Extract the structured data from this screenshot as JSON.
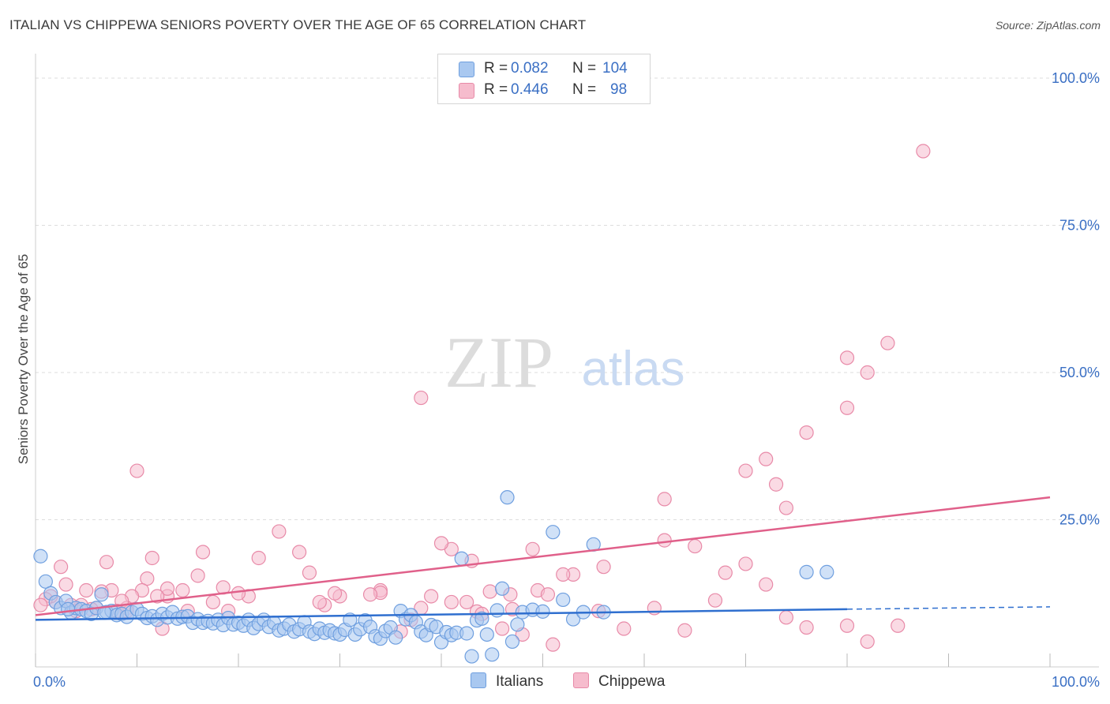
{
  "header": {
    "title": "ITALIAN VS CHIPPEWA SENIORS POVERTY OVER THE AGE OF 65 CORRELATION CHART",
    "source": "Source: ZipAtlas.com"
  },
  "legend": {
    "rows": [
      {
        "r_label": "R =",
        "r_value": "0.082",
        "n_label": "N =",
        "n_value": "104"
      },
      {
        "r_label": "R =",
        "r_value": "0.446",
        "n_label": "N =",
        "n_value": "98"
      }
    ],
    "bottom": [
      "Italians",
      "Chippewa"
    ]
  },
  "watermark": {
    "zip": "ZIP",
    "atlas": "atlas"
  },
  "colors": {
    "italians_fill": "#a9c8f0",
    "italians_stroke": "#6f9fdf",
    "italians_line": "#2f6fcf",
    "chippewa_fill": "#f6bccd",
    "chippewa_stroke": "#e88aa8",
    "chippewa_line": "#e0608a",
    "axis_label": "#3a6fc4",
    "grid": "#dddddd"
  },
  "chart_data": {
    "type": "scatter",
    "title": "ITALIAN VS CHIPPEWA SENIORS POVERTY OVER THE AGE OF 65 CORRELATION CHART",
    "xlabel": "",
    "ylabel": "Seniors Poverty Over the Age of 65",
    "xlim": [
      0,
      100
    ],
    "ylim": [
      0,
      100
    ],
    "x_tick_labels": [
      {
        "value": 0,
        "label": "0.0%"
      },
      {
        "value": 100,
        "label": "100.0%"
      }
    ],
    "y_tick_labels": [
      {
        "value": 25,
        "label": "25.0%"
      },
      {
        "value": 50,
        "label": "50.0%"
      },
      {
        "value": 75,
        "label": "75.0%"
      },
      {
        "value": 100,
        "label": "100.0%"
      }
    ],
    "grid_y": [
      25,
      50,
      75,
      100
    ],
    "series": [
      {
        "name": "Italians",
        "R": 0.082,
        "N": 104,
        "trend": {
          "x0": 0,
          "y0": 8.0,
          "x1": 80,
          "y1": 9.8,
          "dash_to_x": 100,
          "dash_to_y": 10.2
        },
        "points": [
          [
            0.5,
            18.8
          ],
          [
            1,
            14.5
          ],
          [
            1.5,
            12.5
          ],
          [
            2,
            11
          ],
          [
            2.5,
            10
          ],
          [
            3,
            11.2
          ],
          [
            3.5,
            9.2
          ],
          [
            4,
            10
          ],
          [
            4.5,
            9.8
          ],
          [
            5,
            9.5
          ],
          [
            5.5,
            9
          ],
          [
            6,
            10
          ],
          [
            6.5,
            12.3
          ],
          [
            7,
            9.3
          ],
          [
            7.5,
            9.5
          ],
          [
            8,
            8.8
          ],
          [
            8.5,
            9.0
          ],
          [
            9,
            8.5
          ],
          [
            9.5,
            9.3
          ],
          [
            10,
            9.8
          ],
          [
            10.5,
            9.0
          ],
          [
            11,
            8.3
          ],
          [
            11.5,
            8.6
          ],
          [
            12,
            8.0
          ],
          [
            12.5,
            9.0
          ],
          [
            13,
            8.4
          ],
          [
            13.5,
            9.3
          ],
          [
            14,
            8.2
          ],
          [
            14.5,
            8.5
          ],
          [
            15,
            8.6
          ],
          [
            15.5,
            7.5
          ],
          [
            16,
            8.1
          ],
          [
            16.5,
            7.5
          ],
          [
            17,
            7.8
          ],
          [
            17.5,
            7.4
          ],
          [
            18,
            8.0
          ],
          [
            18.5,
            7.1
          ],
          [
            19,
            8.3
          ],
          [
            19.5,
            7.2
          ],
          [
            20,
            7.5
          ],
          [
            20.5,
            7.0
          ],
          [
            21,
            8.0
          ],
          [
            21.5,
            6.6
          ],
          [
            22,
            7.3
          ],
          [
            22.5,
            8.0
          ],
          [
            23,
            6.8
          ],
          [
            23.5,
            7.5
          ],
          [
            24,
            6.2
          ],
          [
            24.5,
            6.5
          ],
          [
            25,
            7.2
          ],
          [
            25.5,
            6.0
          ],
          [
            26,
            6.4
          ],
          [
            26.5,
            7.6
          ],
          [
            27,
            6.0
          ],
          [
            27.5,
            5.6
          ],
          [
            28,
            6.5
          ],
          [
            28.5,
            5.8
          ],
          [
            29,
            6.2
          ],
          [
            29.5,
            5.7
          ],
          [
            30,
            5.5
          ],
          [
            30.5,
            6.3
          ],
          [
            31,
            8.0
          ],
          [
            31.5,
            5.5
          ],
          [
            32,
            6.4
          ],
          [
            32.5,
            7.9
          ],
          [
            33,
            6.8
          ],
          [
            33.5,
            5.2
          ],
          [
            34,
            4.8
          ],
          [
            34.5,
            6.1
          ],
          [
            35,
            6.7
          ],
          [
            35.5,
            5.0
          ],
          [
            36,
            9.5
          ],
          [
            36.5,
            8.1
          ],
          [
            37,
            8.8
          ],
          [
            37.5,
            7.6
          ],
          [
            38,
            6.0
          ],
          [
            38.5,
            5.4
          ],
          [
            39,
            7.1
          ],
          [
            39.5,
            6.8
          ],
          [
            40,
            4.2
          ],
          [
            40.5,
            5.9
          ],
          [
            41,
            5.4
          ],
          [
            41.5,
            5.8
          ],
          [
            42,
            18.4
          ],
          [
            42.5,
            5.7
          ],
          [
            43,
            1.8
          ],
          [
            43.5,
            7.9
          ],
          [
            44,
            8.2
          ],
          [
            44.5,
            5.5
          ],
          [
            45,
            2.1
          ],
          [
            45.5,
            9.6
          ],
          [
            46,
            13.3
          ],
          [
            46.5,
            28.8
          ],
          [
            47,
            4.3
          ],
          [
            47.5,
            7.2
          ],
          [
            48,
            9.3
          ],
          [
            49,
            9.7
          ],
          [
            50,
            9.4
          ],
          [
            51,
            22.9
          ],
          [
            52,
            11.4
          ],
          [
            53,
            8.1
          ],
          [
            54,
            9.3
          ],
          [
            55,
            20.8
          ],
          [
            56,
            9.3
          ],
          [
            76,
            16.1
          ],
          [
            78,
            16.1
          ],
          [
            3.2,
            9.8
          ],
          [
            6.8,
            9.2
          ]
        ]
      },
      {
        "name": "Chippewa",
        "R": 0.446,
        "N": 98,
        "trend": {
          "x0": 0,
          "y0": 8.8,
          "x1": 100,
          "y1": 28.8
        },
        "points": [
          [
            87.5,
            87.6
          ],
          [
            84,
            55
          ],
          [
            82,
            50
          ],
          [
            80,
            52.5
          ],
          [
            80,
            44
          ],
          [
            76,
            39.8
          ],
          [
            72,
            35.3
          ],
          [
            70,
            33.3
          ],
          [
            74,
            27
          ],
          [
            73,
            31
          ],
          [
            62,
            28.5
          ],
          [
            65,
            20.5
          ],
          [
            62,
            21.5
          ],
          [
            56,
            17
          ],
          [
            53,
            15.7
          ],
          [
            52,
            15.7
          ],
          [
            49,
            20
          ],
          [
            43,
            18
          ],
          [
            41,
            20
          ],
          [
            38,
            45.7
          ],
          [
            40,
            21
          ],
          [
            43.5,
            9.4
          ],
          [
            42.5,
            11
          ],
          [
            41,
            11
          ],
          [
            34,
            13
          ],
          [
            34,
            12.6
          ],
          [
            33,
            12.3
          ],
          [
            30,
            12
          ],
          [
            29.5,
            12.5
          ],
          [
            28.5,
            10.5
          ],
          [
            28,
            11
          ],
          [
            27,
            16
          ],
          [
            26,
            19.5
          ],
          [
            24,
            23
          ],
          [
            22,
            18.5
          ],
          [
            21,
            12
          ],
          [
            20,
            12.5
          ],
          [
            19,
            9.5
          ],
          [
            18.5,
            13.5
          ],
          [
            17.5,
            11
          ],
          [
            16.5,
            19.5
          ],
          [
            16,
            15.5
          ],
          [
            15,
            9.5
          ],
          [
            14.5,
            13
          ],
          [
            13,
            12
          ],
          [
            13,
            13.3
          ],
          [
            12.5,
            6.5
          ],
          [
            12,
            12
          ],
          [
            11.5,
            18.5
          ],
          [
            11,
            15
          ],
          [
            10.5,
            13
          ],
          [
            10,
            33.3
          ],
          [
            9.5,
            12
          ],
          [
            9,
            10
          ],
          [
            8.5,
            11.2
          ],
          [
            8,
            9.5
          ],
          [
            7.5,
            13
          ],
          [
            7,
            17.8
          ],
          [
            6.5,
            12.8
          ],
          [
            6,
            10
          ],
          [
            5.5,
            9.8
          ],
          [
            5,
            13
          ],
          [
            4.5,
            10.5
          ],
          [
            4,
            9.5
          ],
          [
            3.5,
            10.5
          ],
          [
            3,
            14
          ],
          [
            2.5,
            17
          ],
          [
            2,
            11
          ],
          [
            1.5,
            12
          ],
          [
            1,
            11.5
          ],
          [
            0.5,
            10.5
          ],
          [
            9,
            9.5
          ],
          [
            36,
            6
          ],
          [
            37,
            8
          ],
          [
            38,
            10
          ],
          [
            39,
            12
          ],
          [
            44,
            9
          ],
          [
            46,
            6.5
          ],
          [
            47,
            9.8
          ],
          [
            48,
            5.5
          ],
          [
            44.8,
            12.8
          ],
          [
            46.8,
            12.3
          ],
          [
            49.5,
            13
          ],
          [
            50.5,
            12.3
          ],
          [
            51,
            3.8
          ],
          [
            55.5,
            9.5
          ],
          [
            58,
            6.5
          ],
          [
            61,
            10
          ],
          [
            64,
            6.2
          ],
          [
            67,
            11.3
          ],
          [
            68,
            16
          ],
          [
            70,
            17.5
          ],
          [
            72,
            14
          ],
          [
            74,
            8.4
          ],
          [
            76,
            6.7
          ],
          [
            80,
            7
          ],
          [
            82,
            4.3
          ],
          [
            85,
            7
          ]
        ]
      }
    ]
  }
}
